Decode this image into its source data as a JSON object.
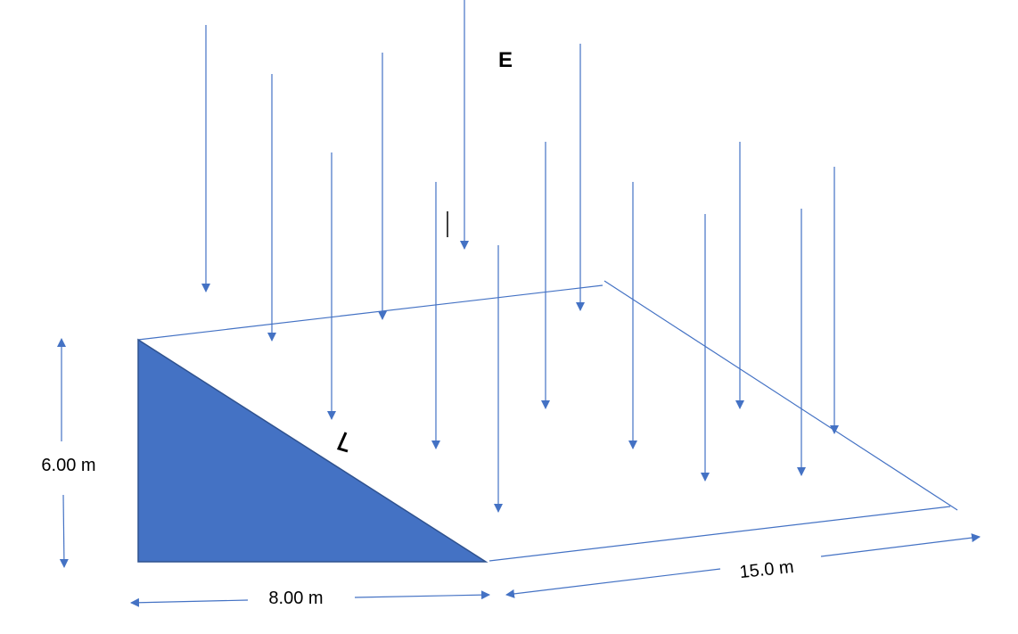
{
  "labels": {
    "field": "E",
    "height": "6.00 m",
    "base": "8.00 m",
    "depth": "15.0 m"
  },
  "colors": {
    "fill": "#4472C4",
    "line": "#4472C4",
    "outline": "#2F528F",
    "text": "#000000"
  }
}
